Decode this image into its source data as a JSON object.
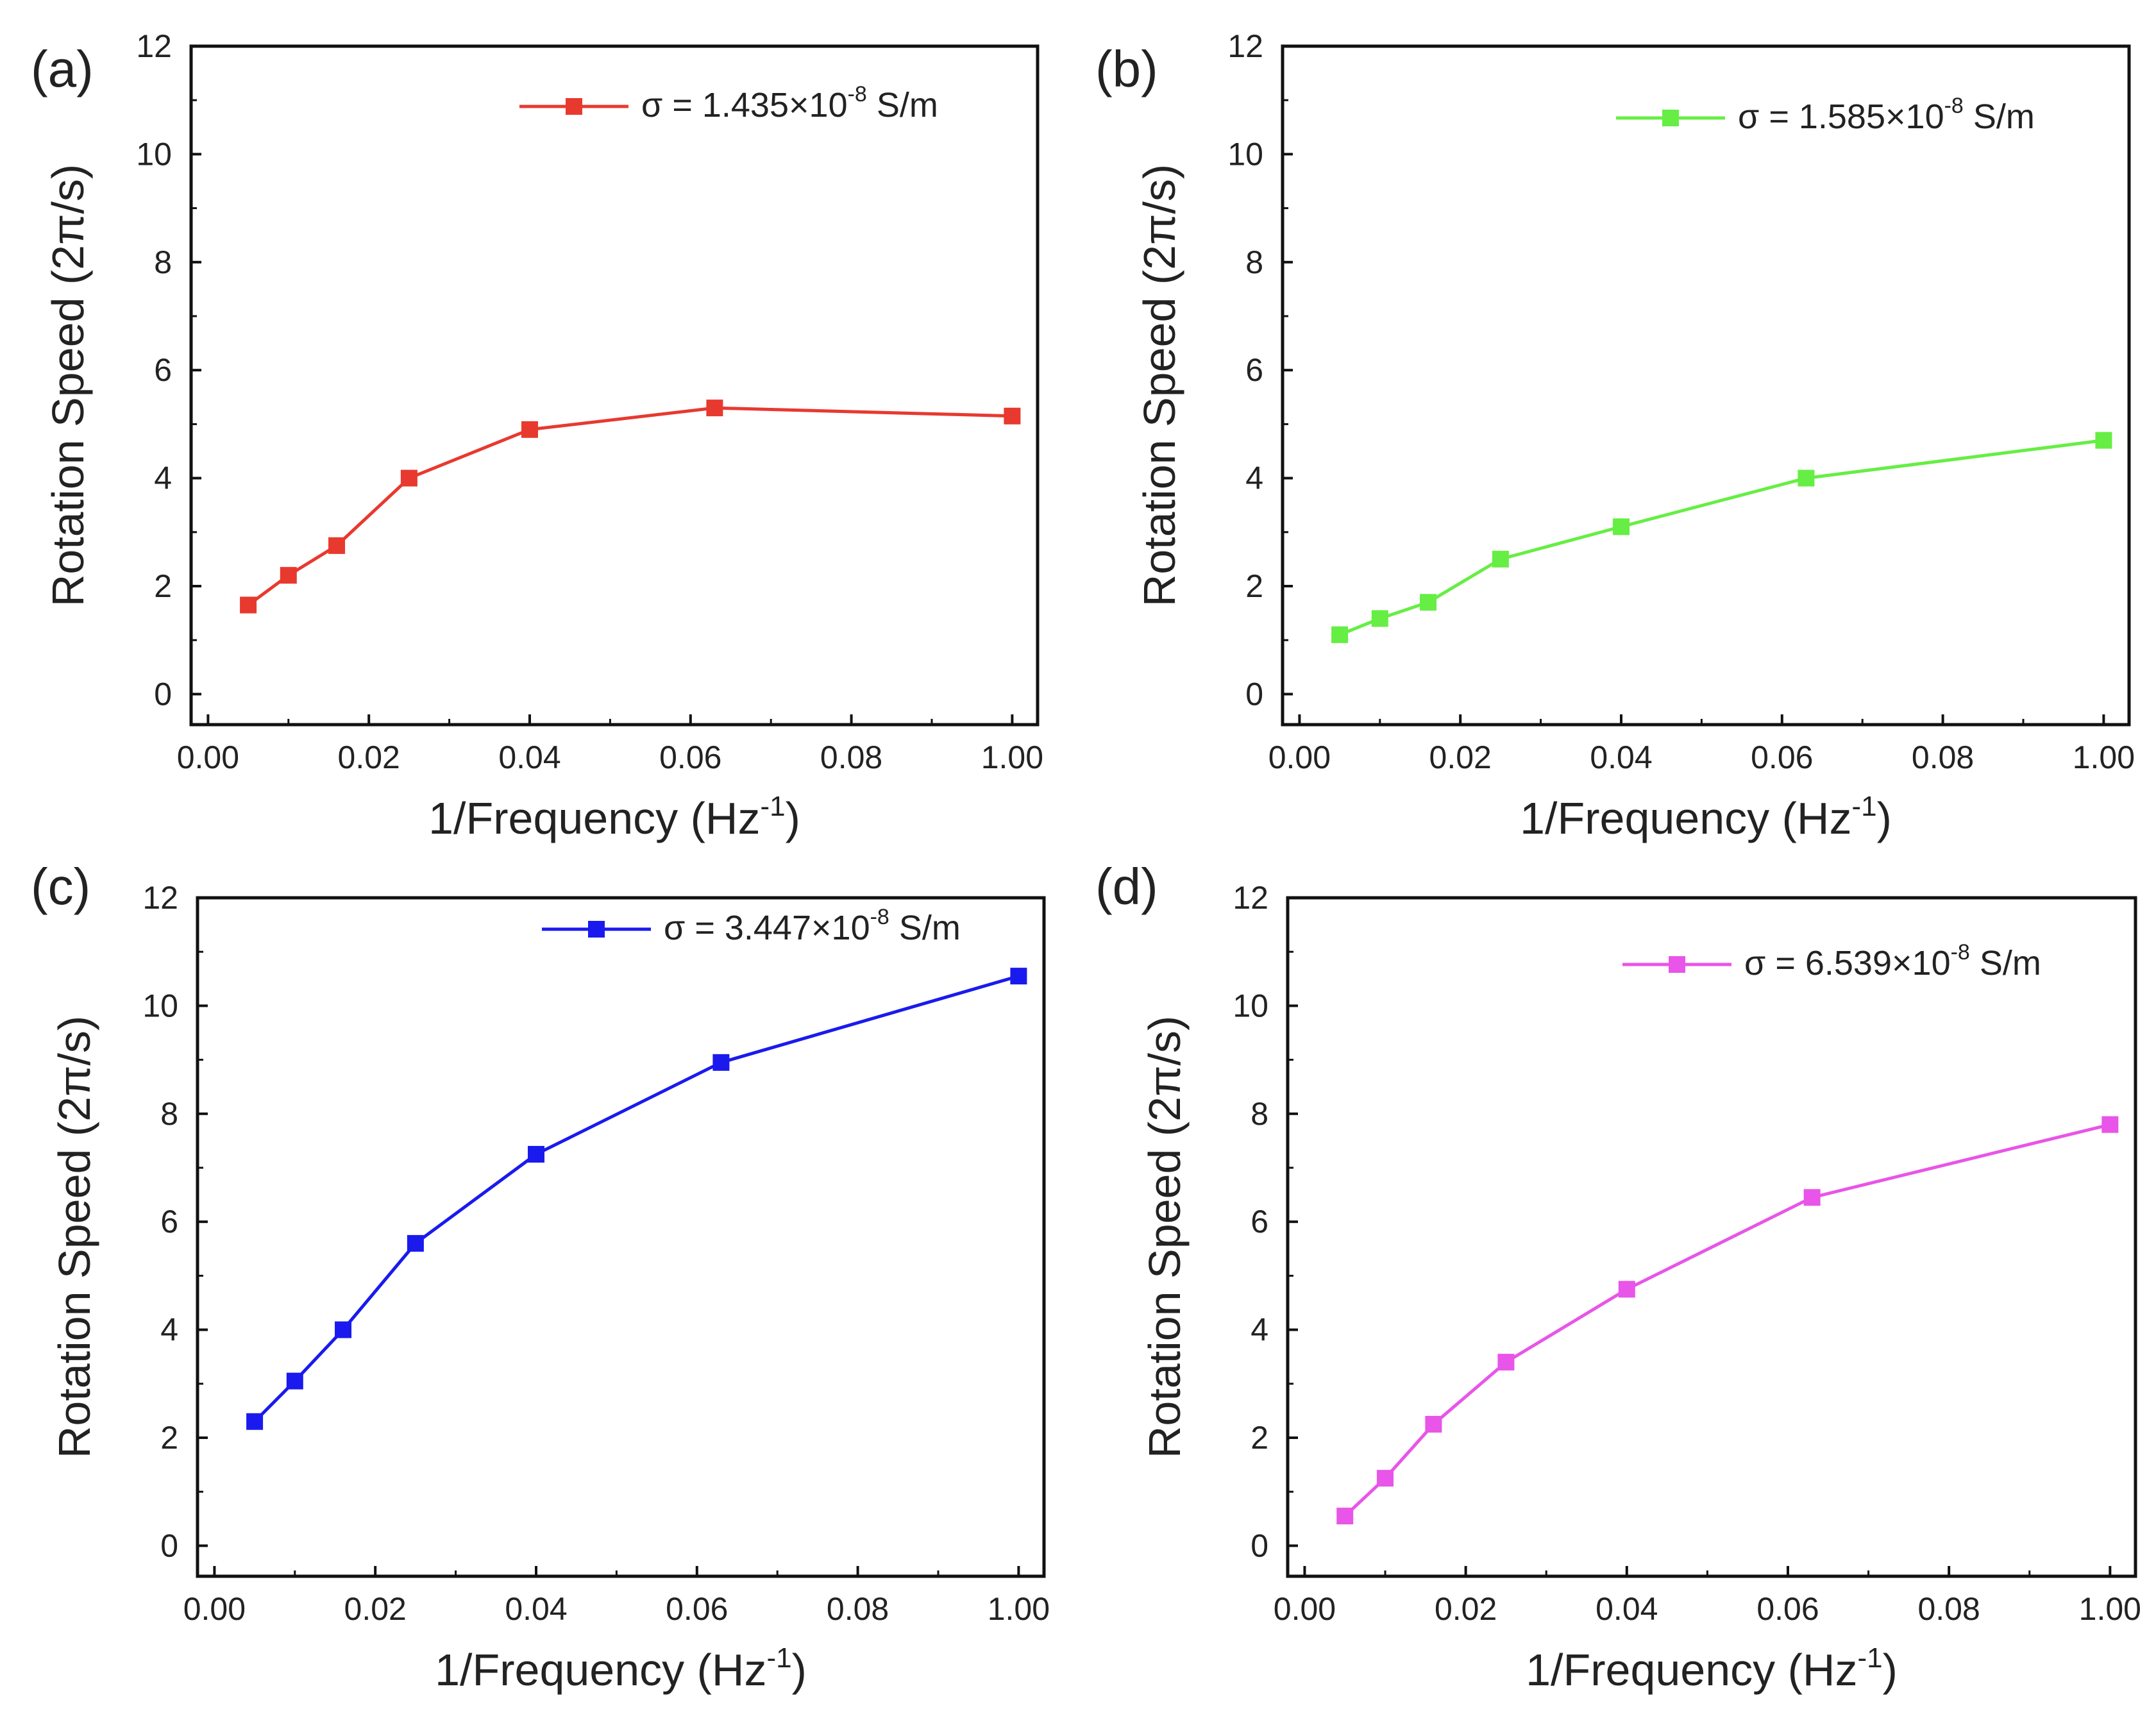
{
  "chart_data": [
    {
      "type": "line",
      "panel_label": "(a)",
      "color": "#e8392f",
      "xlabel": "1/Frequency (Hz",
      "xlabel_sup": "-1",
      "xlabel_end": ")",
      "ylabel": "Rotation Speed (2π/s)",
      "x_ticks": [
        "0.00",
        "0.02",
        "0.04",
        "0.06",
        "0.08",
        "1.00"
      ],
      "y_ticks": [
        "0",
        "2",
        "4",
        "6",
        "8",
        "10",
        "12"
      ],
      "ylim": [
        0,
        12
      ],
      "legend": {
        "prefix": "σ = 1.435×10",
        "sup": "-8",
        "suffix": " S/m",
        "position": "top-right"
      },
      "x": [
        0.005,
        0.01,
        0.016,
        0.025,
        0.04,
        0.063,
        1.0
      ],
      "x_positions": [
        0.005,
        0.01,
        0.016,
        0.025,
        0.04,
        0.063,
        0.1
      ],
      "values": [
        1.65,
        2.2,
        2.75,
        4.0,
        4.9,
        5.3,
        5.15
      ]
    },
    {
      "type": "line",
      "panel_label": "(b)",
      "color": "#66ee44",
      "xlabel": "1/Frequency (Hz",
      "xlabel_sup": "-1",
      "xlabel_end": ")",
      "ylabel": "Rotation Speed (2π/s)",
      "x_ticks": [
        "0.00",
        "0.02",
        "0.04",
        "0.06",
        "0.08",
        "1.00"
      ],
      "y_ticks": [
        "0",
        "2",
        "4",
        "6",
        "8",
        "10",
        "12"
      ],
      "ylim": [
        0,
        12
      ],
      "legend": {
        "prefix": "σ = 1.585×10",
        "sup": "-8",
        "suffix": " S/m",
        "position": "top-right"
      },
      "x": [
        0.005,
        0.01,
        0.016,
        0.025,
        0.04,
        0.063,
        1.0
      ],
      "x_positions": [
        0.005,
        0.01,
        0.016,
        0.025,
        0.04,
        0.063,
        0.1
      ],
      "values": [
        1.1,
        1.4,
        1.7,
        2.5,
        3.1,
        4.0,
        4.7
      ]
    },
    {
      "type": "line",
      "panel_label": "(c)",
      "color": "#1a1aee",
      "xlabel": "1/Frequency (Hz",
      "xlabel_sup": "-1",
      "xlabel_end": ")",
      "ylabel": "Rotation Speed (2π/s)",
      "x_ticks": [
        "0.00",
        "0.02",
        "0.04",
        "0.06",
        "0.08",
        "1.00"
      ],
      "y_ticks": [
        "0",
        "2",
        "4",
        "6",
        "8",
        "10",
        "12"
      ],
      "ylim": [
        0,
        12
      ],
      "legend": {
        "prefix": "σ = 3.447×10",
        "sup": "-8",
        "suffix": " S/m",
        "position": "top-right"
      },
      "x": [
        0.005,
        0.01,
        0.016,
        0.025,
        0.04,
        0.063,
        1.0
      ],
      "x_positions": [
        0.005,
        0.01,
        0.016,
        0.025,
        0.04,
        0.063,
        0.1
      ],
      "values": [
        2.3,
        3.05,
        4.0,
        5.6,
        7.25,
        8.95,
        10.55
      ]
    },
    {
      "type": "line",
      "panel_label": "(d)",
      "color": "#e855e8",
      "xlabel": "1/Frequency (Hz",
      "xlabel_sup": "-1",
      "xlabel_end": ")",
      "ylabel": "Rotation Speed (2π/s)",
      "x_ticks": [
        "0.00",
        "0.02",
        "0.04",
        "0.06",
        "0.08",
        "1.00"
      ],
      "y_ticks": [
        "0",
        "2",
        "4",
        "6",
        "8",
        "10",
        "12"
      ],
      "ylim": [
        0,
        12
      ],
      "legend": {
        "prefix": "σ = 6.539×10",
        "sup": "-8",
        "suffix": " S/m",
        "position": "top-right"
      },
      "x": [
        0.005,
        0.01,
        0.016,
        0.025,
        0.04,
        0.063,
        1.0
      ],
      "x_positions": [
        0.005,
        0.01,
        0.016,
        0.025,
        0.04,
        0.063,
        0.1
      ],
      "values": [
        0.55,
        1.25,
        2.25,
        3.4,
        4.75,
        6.45,
        7.8
      ]
    }
  ]
}
